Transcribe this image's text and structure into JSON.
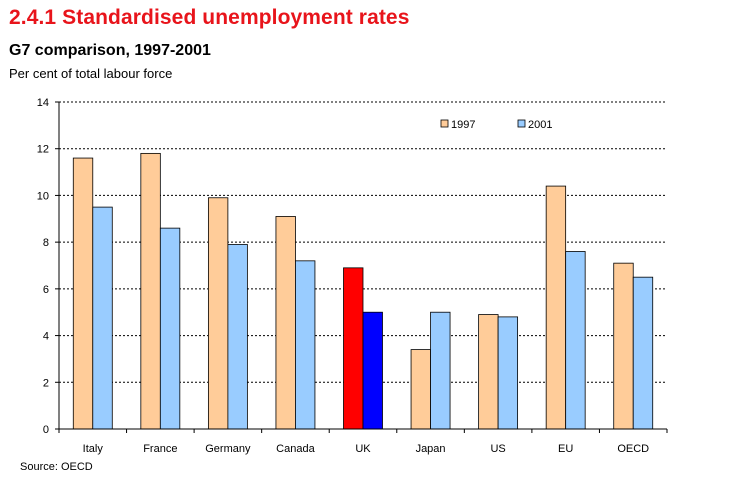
{
  "header": {
    "title": "2.4.1 Standardised unemployment rates",
    "subtitle": "G7 comparison, 1997-2001",
    "units": "Per cent of total labour force"
  },
  "footer": {
    "source": "Source: OECD"
  },
  "colors": {
    "series_1997": "#ffcc99",
    "series_2001": "#99ccff",
    "uk_1997": "#ff0000",
    "uk_2001": "#0000ff",
    "title": "#e8141b"
  },
  "chart_data": {
    "type": "bar",
    "title": "2.4.1 Standardised unemployment rates",
    "subtitle": "G7 comparison, 1997-2001",
    "ylabel": "Per cent of total labour force",
    "xlabel": "",
    "ylim": [
      0,
      14
    ],
    "yticks": [
      0,
      2,
      4,
      6,
      8,
      10,
      12,
      14
    ],
    "grid": true,
    "legend_position": "top-right",
    "categories": [
      "Italy",
      "France",
      "Germany",
      "Canada",
      "UK",
      "Japan",
      "US",
      "EU",
      "OECD"
    ],
    "series": [
      {
        "name": "1997",
        "values": [
          11.6,
          11.8,
          9.9,
          9.1,
          6.9,
          3.4,
          4.9,
          10.4,
          7.1
        ]
      },
      {
        "name": "2001",
        "values": [
          9.5,
          8.6,
          7.9,
          7.2,
          5.0,
          5.0,
          4.8,
          7.6,
          6.5
        ]
      }
    ],
    "highlight_category": "UK"
  }
}
